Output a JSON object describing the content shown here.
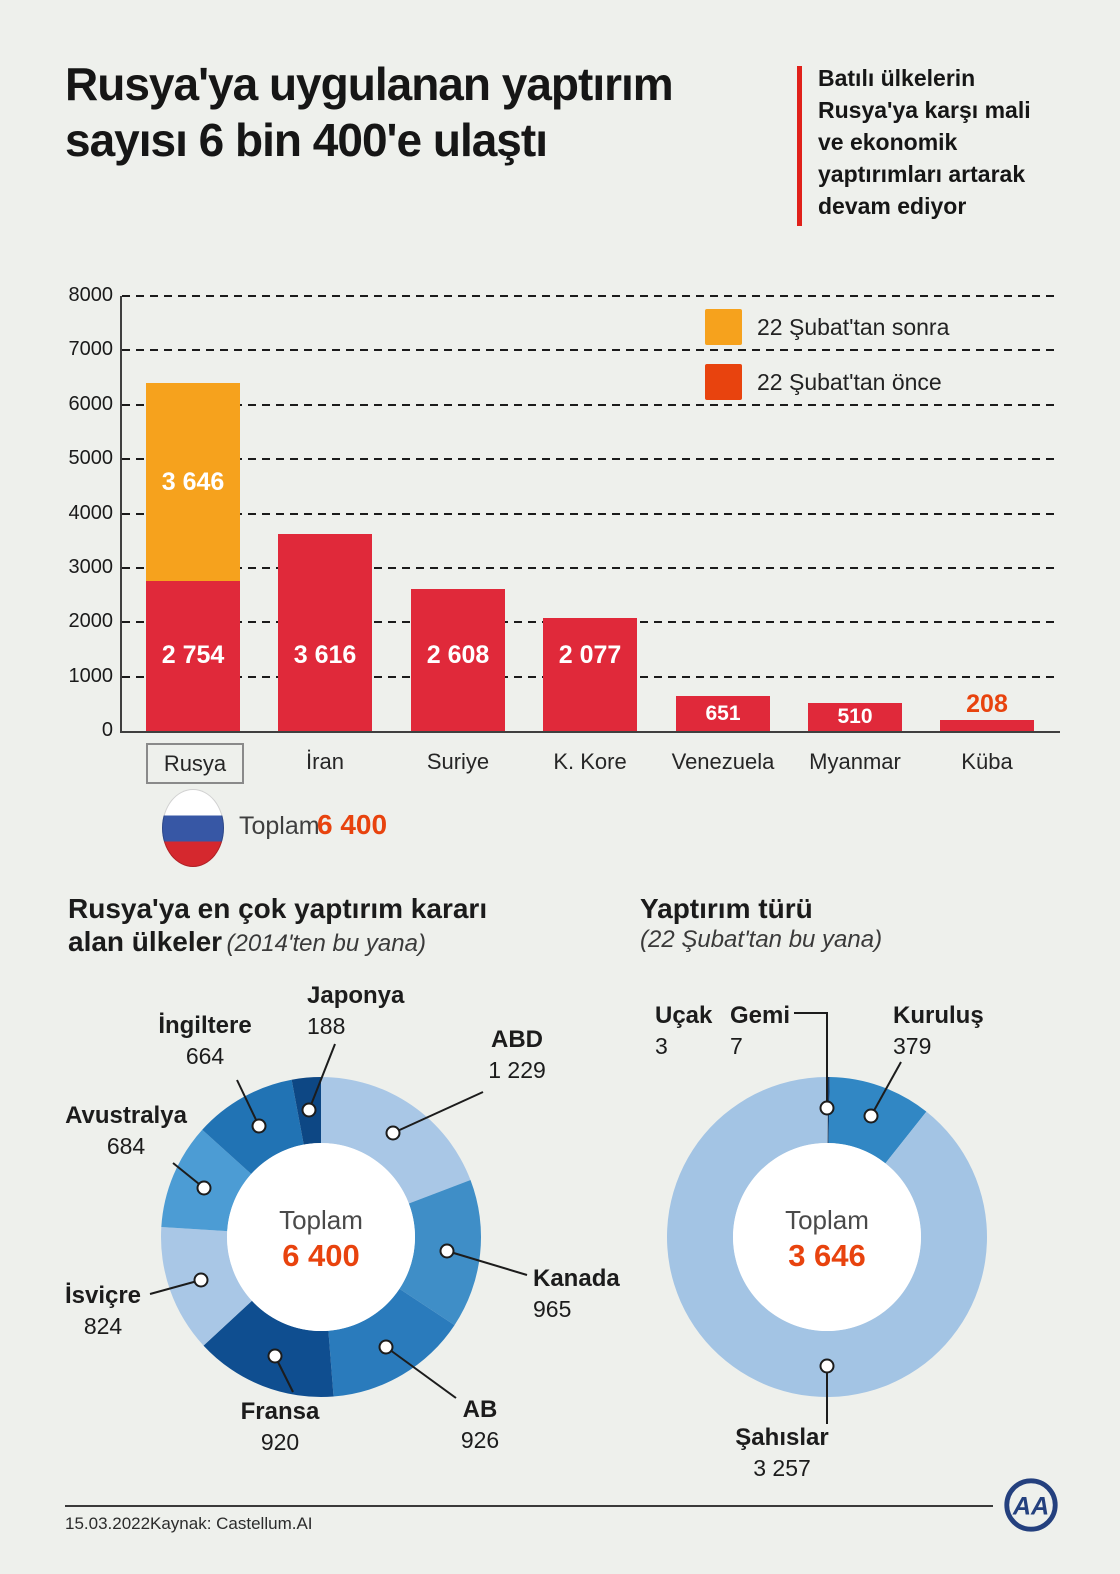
{
  "header": {
    "title": "Rusya'ya uygulanan yaptırım\nsayısı 6 bin 400'e ulaştı",
    "note": "Batılı ülkelerin\nRusya'ya karşı mali\nve ekonomik\nyaptırımları artarak\ndevam ediyor",
    "accent_color": "#e0211a"
  },
  "chart_data": [
    {
      "id": "sanctions-by-country",
      "type": "bar",
      "stacked": true,
      "categories": [
        "Rusya",
        "İran",
        "Suriye",
        "K. Kore",
        "Venezuela",
        "Myanmar",
        "Küba"
      ],
      "series": [
        {
          "name": "22 Şubat'tan önce",
          "color": "#e0293a",
          "values": [
            2754,
            3616,
            2608,
            2077,
            651,
            510,
            208
          ],
          "labels": [
            "2 754",
            "3 616",
            "2 608",
            "2 077",
            "651",
            "510",
            "208"
          ]
        },
        {
          "name": "22 Şubat'tan sonra",
          "color": "#f6a21d",
          "values": [
            3646,
            0,
            0,
            0,
            0,
            0,
            0
          ],
          "labels": [
            "3 646",
            "",
            "",
            "",
            "",
            "",
            ""
          ]
        }
      ],
      "legend": [
        {
          "label": "22 Şubat'tan sonra",
          "color": "#f6a21d"
        },
        {
          "label": "22 Şubat'tan önce",
          "color": "#e8430e"
        }
      ],
      "ylim": [
        0,
        8000
      ],
      "ytick_step": 1000,
      "grid": "dashed",
      "legend_position": "top-right",
      "highlight_category": "Rusya",
      "outside_label_color": "#e8430e"
    },
    {
      "id": "donut-countries",
      "type": "pie",
      "title": "Rusya'ya en çok yaptırım kararı",
      "title2": "alan ülkeler",
      "subtitle": "(2014'ten bu yana)",
      "center_label": "Toplam",
      "center_value": "6 400",
      "center_value_color": "#e8430e",
      "slices": [
        {
          "label": "ABD",
          "value": 1229,
          "display": "1 229",
          "color": "#a9c7e6"
        },
        {
          "label": "Kanada",
          "value": 965,
          "display": "965",
          "color": "#3f8ec7"
        },
        {
          "label": "AB",
          "value": 926,
          "display": "926",
          "color": "#2a7bbc"
        },
        {
          "label": "Fransa",
          "value": 920,
          "display": "920",
          "color": "#0f4e90"
        },
        {
          "label": "İsviçre",
          "value": 824,
          "display": "824",
          "color": "#a9c7e6"
        },
        {
          "label": "Avustralya",
          "value": 684,
          "display": "684",
          "color": "#4c9cd4"
        },
        {
          "label": "İngiltere",
          "value": 664,
          "display": "664",
          "color": "#2173b4"
        },
        {
          "label": "Japonya",
          "value": 188,
          "display": "188",
          "color": "#0d4784"
        }
      ]
    },
    {
      "id": "donut-types",
      "type": "pie",
      "title": "Yaptırım türü",
      "subtitle": "(22 Şubat'tan bu yana)",
      "center_label": "Toplam",
      "center_value": "3 646",
      "center_value_color": "#e8430e",
      "slices": [
        {
          "label": "Uçak",
          "value": 3,
          "display": "3",
          "color": "#eef0ec"
        },
        {
          "label": "Gemi",
          "value": 7,
          "display": "7",
          "color": "#123e70"
        },
        {
          "label": "Kuruluş",
          "value": 379,
          "display": "379",
          "color": "#3187c4"
        },
        {
          "label": "Şahıslar",
          "value": 3257,
          "display": "3 257",
          "color": "#a3c4e4"
        }
      ]
    }
  ],
  "total_row": {
    "label": "Toplam",
    "value": "6 400",
    "value_color": "#e8430e"
  },
  "footer": {
    "date": "15.03.2022",
    "source": "Kaynak: Castellum.AI",
    "logo_text": "AA"
  }
}
